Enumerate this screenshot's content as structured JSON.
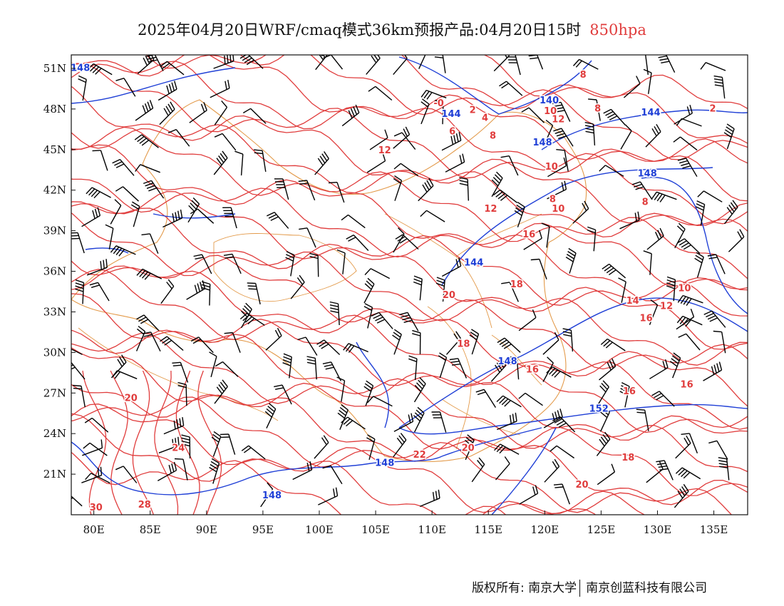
{
  "title": {
    "main": "2025年04月20日WRF/cmaq模式36km预报产品:04月20日15时",
    "level": "850hpa"
  },
  "axes": {
    "x_ticks": [
      "80E",
      "85E",
      "90E",
      "95E",
      "100E",
      "105E",
      "110E",
      "115E",
      "120E",
      "125E",
      "130E",
      "135E"
    ],
    "y_ticks": [
      "51N",
      "48N",
      "45N",
      "42N",
      "39N",
      "36N",
      "33N",
      "30N",
      "27N",
      "24N",
      "21N"
    ],
    "lon_range": [
      78,
      138
    ],
    "lat_range": [
      18,
      52
    ]
  },
  "contours": {
    "height_color": "#1f3fd6",
    "temp_color": "#e03c3c",
    "border_color": "#e39a4a",
    "height_labels": [
      {
        "text": "148",
        "lon": 78.8,
        "lat": 51.0
      },
      {
        "text": "144",
        "lon": 111.7,
        "lat": 47.6
      },
      {
        "text": "140",
        "lon": 120.4,
        "lat": 48.6
      },
      {
        "text": "148",
        "lon": 119.8,
        "lat": 45.5
      },
      {
        "text": "144",
        "lon": 129.4,
        "lat": 47.7
      },
      {
        "text": "148",
        "lon": 129.1,
        "lat": 43.2
      },
      {
        "text": "144",
        "lon": 113.7,
        "lat": 36.6
      },
      {
        "text": "148",
        "lon": 116.7,
        "lat": 29.3
      },
      {
        "text": "152",
        "lon": 124.8,
        "lat": 25.8
      },
      {
        "text": "148",
        "lon": 105.8,
        "lat": 21.8
      },
      {
        "text": "148",
        "lon": 95.8,
        "lat": 19.4
      }
    ],
    "temp_labels": [
      {
        "text": "-0",
        "lon": 110.6,
        "lat": 48.4
      },
      {
        "text": "2",
        "lon": 113.6,
        "lat": 47.9
      },
      {
        "text": "4",
        "lon": 114.7,
        "lat": 47.3
      },
      {
        "text": "6",
        "lon": 111.8,
        "lat": 46.3
      },
      {
        "text": "8",
        "lon": 115.4,
        "lat": 46.0
      },
      {
        "text": "8",
        "lon": 123.4,
        "lat": 50.5
      },
      {
        "text": "8",
        "lon": 124.7,
        "lat": 48.0
      },
      {
        "text": "10",
        "lon": 120.5,
        "lat": 47.8
      },
      {
        "text": "12",
        "lon": 121.2,
        "lat": 47.2
      },
      {
        "text": "12",
        "lon": 105.8,
        "lat": 44.9
      },
      {
        "text": "10",
        "lon": 120.6,
        "lat": 43.7
      },
      {
        "text": "8",
        "lon": 120.7,
        "lat": 41.3
      },
      {
        "text": "10",
        "lon": 121.2,
        "lat": 40.6
      },
      {
        "text": "12",
        "lon": 115.2,
        "lat": 40.6
      },
      {
        "text": "16",
        "lon": 118.6,
        "lat": 38.7
      },
      {
        "text": "8",
        "lon": 128.9,
        "lat": 41.1
      },
      {
        "text": "2",
        "lon": 134.9,
        "lat": 48.0
      },
      {
        "text": "20",
        "lon": 111.5,
        "lat": 34.2
      },
      {
        "text": "18",
        "lon": 117.5,
        "lat": 35.0
      },
      {
        "text": "14",
        "lon": 127.8,
        "lat": 33.8
      },
      {
        "text": "10",
        "lon": 132.4,
        "lat": 34.7
      },
      {
        "text": "12",
        "lon": 130.8,
        "lat": 33.4
      },
      {
        "text": "16",
        "lon": 129.0,
        "lat": 32.5
      },
      {
        "text": "18",
        "lon": 112.8,
        "lat": 30.6
      },
      {
        "text": "16",
        "lon": 118.9,
        "lat": 28.7
      },
      {
        "text": "16",
        "lon": 127.5,
        "lat": 27.1
      },
      {
        "text": "16",
        "lon": 132.6,
        "lat": 27.6
      },
      {
        "text": "20",
        "lon": 83.3,
        "lat": 26.6
      },
      {
        "text": "24",
        "lon": 87.5,
        "lat": 22.9
      },
      {
        "text": "28",
        "lon": 84.5,
        "lat": 18.7
      },
      {
        "text": "30",
        "lon": 80.2,
        "lat": 18.5
      },
      {
        "text": "22",
        "lon": 108.9,
        "lat": 22.4
      },
      {
        "text": "20",
        "lon": 113.2,
        "lat": 22.9
      },
      {
        "text": "18",
        "lon": 127.4,
        "lat": 22.2
      },
      {
        "text": "20",
        "lon": 123.3,
        "lat": 20.2
      }
    ]
  },
  "footer": {
    "copyright": "版权所有: 南京大学",
    "company": "南京创蓝科技有限公司"
  }
}
